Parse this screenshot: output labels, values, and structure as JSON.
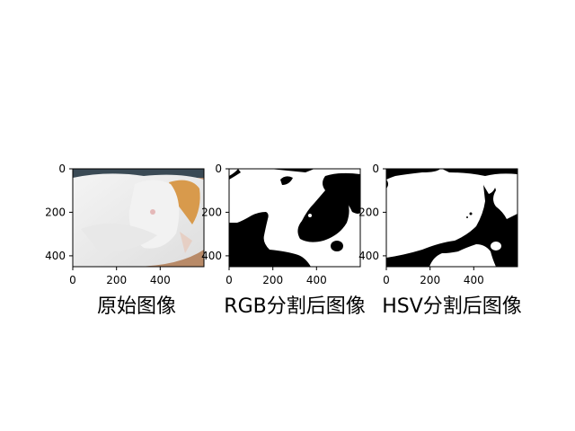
{
  "chart_data": [
    {
      "type": "image",
      "title": "原始图像",
      "image_content": "photo of a sleeping white and orange cat",
      "xlim": [
        0,
        600
      ],
      "ylim": [
        450,
        0
      ],
      "x_ticks": [
        0,
        200,
        400
      ],
      "y_ticks": [
        0,
        200,
        400
      ]
    },
    {
      "type": "image",
      "title": "RGB分割后图像",
      "image_content": "binary mask (black and white)",
      "xlim": [
        0,
        600
      ],
      "ylim": [
        450,
        0
      ],
      "x_ticks": [
        0,
        200,
        400
      ],
      "y_ticks": [
        0,
        200,
        400
      ]
    },
    {
      "type": "image",
      "title": "HSV分割后图像",
      "image_content": "binary mask (black and white)",
      "xlim": [
        0,
        600
      ],
      "ylim": [
        450,
        0
      ],
      "x_ticks": [
        0,
        200,
        400
      ],
      "y_ticks": [
        0,
        200,
        400
      ]
    }
  ],
  "colors": {
    "mask_black": "#000000",
    "mask_white": "#ffffff",
    "photo_white": "#eeeeee",
    "photo_orange": "#d89a4c",
    "photo_background": "#b88a68"
  }
}
